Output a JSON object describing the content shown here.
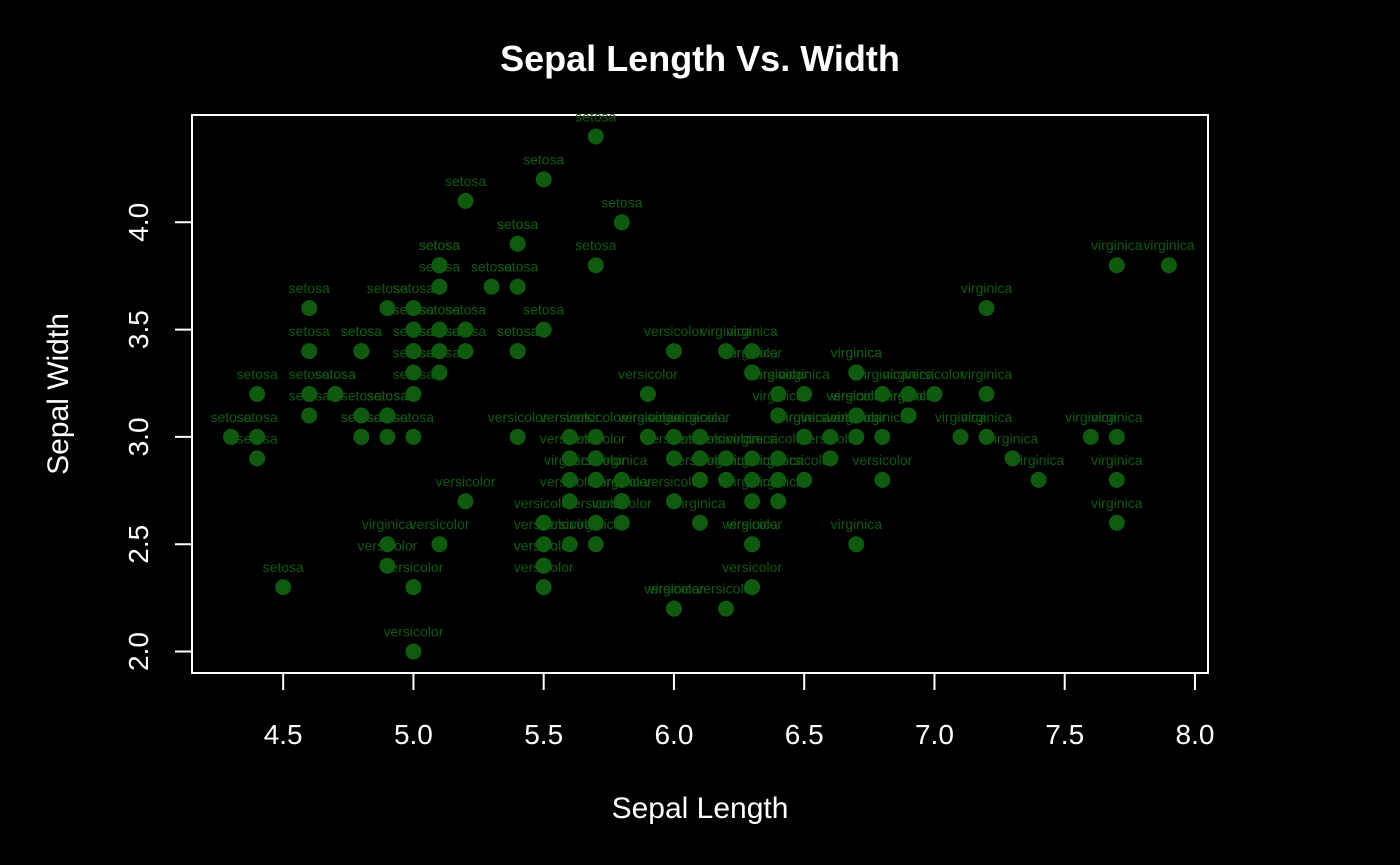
{
  "chart_data": {
    "type": "scatter",
    "title": "Sepal Length Vs. Width",
    "xlabel": "Sepal Length",
    "ylabel": "Sepal Width",
    "xlim": [
      4.15,
      8.05
    ],
    "ylim": [
      1.9,
      4.5
    ],
    "xticks": [
      "4.5",
      "5.0",
      "5.5",
      "6.0",
      "6.5",
      "7.0",
      "7.5",
      "8.0"
    ],
    "yticks": [
      "2.0",
      "2.5",
      "3.0",
      "3.5",
      "4.0"
    ],
    "grid": false,
    "legend": "none",
    "colors": {
      "background": "#000000",
      "foreground": "#ffffff",
      "point": "#0f5a0f"
    },
    "points": [
      [
        5.1,
        3.5,
        "setosa"
      ],
      [
        4.9,
        3.0,
        "setosa"
      ],
      [
        4.7,
        3.2,
        "setosa"
      ],
      [
        4.6,
        3.1,
        "setosa"
      ],
      [
        5.0,
        3.6,
        "setosa"
      ],
      [
        5.4,
        3.9,
        "setosa"
      ],
      [
        4.6,
        3.4,
        "setosa"
      ],
      [
        5.0,
        3.4,
        "setosa"
      ],
      [
        4.4,
        2.9,
        "setosa"
      ],
      [
        4.9,
        3.1,
        "setosa"
      ],
      [
        5.4,
        3.7,
        "setosa"
      ],
      [
        4.8,
        3.4,
        "setosa"
      ],
      [
        4.8,
        3.0,
        "setosa"
      ],
      [
        4.3,
        3.0,
        "setosa"
      ],
      [
        5.8,
        4.0,
        "setosa"
      ],
      [
        5.7,
        4.4,
        "setosa"
      ],
      [
        5.4,
        3.9,
        "setosa"
      ],
      [
        5.1,
        3.5,
        "setosa"
      ],
      [
        5.7,
        3.8,
        "setosa"
      ],
      [
        5.1,
        3.8,
        "setosa"
      ],
      [
        5.4,
        3.4,
        "setosa"
      ],
      [
        5.1,
        3.7,
        "setosa"
      ],
      [
        4.6,
        3.6,
        "setosa"
      ],
      [
        5.1,
        3.3,
        "setosa"
      ],
      [
        4.8,
        3.4,
        "setosa"
      ],
      [
        5.0,
        3.0,
        "setosa"
      ],
      [
        5.0,
        3.4,
        "setosa"
      ],
      [
        5.2,
        3.5,
        "setosa"
      ],
      [
        5.2,
        3.4,
        "setosa"
      ],
      [
        4.7,
        3.2,
        "setosa"
      ],
      [
        4.8,
        3.1,
        "setosa"
      ],
      [
        5.4,
        3.4,
        "setosa"
      ],
      [
        5.2,
        4.1,
        "setosa"
      ],
      [
        5.5,
        4.2,
        "setosa"
      ],
      [
        4.9,
        3.1,
        "setosa"
      ],
      [
        5.0,
        3.2,
        "setosa"
      ],
      [
        5.5,
        3.5,
        "setosa"
      ],
      [
        4.9,
        3.6,
        "setosa"
      ],
      [
        4.4,
        3.0,
        "setosa"
      ],
      [
        5.1,
        3.4,
        "setosa"
      ],
      [
        5.0,
        3.5,
        "setosa"
      ],
      [
        4.5,
        2.3,
        "setosa"
      ],
      [
        4.4,
        3.2,
        "setosa"
      ],
      [
        5.0,
        3.5,
        "setosa"
      ],
      [
        5.1,
        3.8,
        "setosa"
      ],
      [
        4.8,
        3.0,
        "setosa"
      ],
      [
        5.1,
        3.8,
        "setosa"
      ],
      [
        4.6,
        3.2,
        "setosa"
      ],
      [
        5.3,
        3.7,
        "setosa"
      ],
      [
        5.0,
        3.3,
        "setosa"
      ],
      [
        7.0,
        3.2,
        "versicolor"
      ],
      [
        6.4,
        3.2,
        "versicolor"
      ],
      [
        6.9,
        3.1,
        "versicolor"
      ],
      [
        5.5,
        2.3,
        "versicolor"
      ],
      [
        6.5,
        2.8,
        "versicolor"
      ],
      [
        5.7,
        2.8,
        "versicolor"
      ],
      [
        6.3,
        3.3,
        "versicolor"
      ],
      [
        4.9,
        2.4,
        "versicolor"
      ],
      [
        6.6,
        2.9,
        "versicolor"
      ],
      [
        5.2,
        2.7,
        "versicolor"
      ],
      [
        5.0,
        2.0,
        "versicolor"
      ],
      [
        5.9,
        3.0,
        "versicolor"
      ],
      [
        6.0,
        2.2,
        "versicolor"
      ],
      [
        6.1,
        2.9,
        "versicolor"
      ],
      [
        5.6,
        2.9,
        "versicolor"
      ],
      [
        6.7,
        3.1,
        "versicolor"
      ],
      [
        5.6,
        3.0,
        "versicolor"
      ],
      [
        5.8,
        2.7,
        "versicolor"
      ],
      [
        6.2,
        2.2,
        "versicolor"
      ],
      [
        5.6,
        2.5,
        "versicolor"
      ],
      [
        5.9,
        3.2,
        "versicolor"
      ],
      [
        6.1,
        2.8,
        "versicolor"
      ],
      [
        6.3,
        2.5,
        "versicolor"
      ],
      [
        6.1,
        2.8,
        "versicolor"
      ],
      [
        6.4,
        2.9,
        "versicolor"
      ],
      [
        6.6,
        3.0,
        "versicolor"
      ],
      [
        6.8,
        2.8,
        "versicolor"
      ],
      [
        6.7,
        3.0,
        "versicolor"
      ],
      [
        6.0,
        2.9,
        "versicolor"
      ],
      [
        5.7,
        2.6,
        "versicolor"
      ],
      [
        5.5,
        2.4,
        "versicolor"
      ],
      [
        5.5,
        2.4,
        "versicolor"
      ],
      [
        5.8,
        2.7,
        "versicolor"
      ],
      [
        6.0,
        2.7,
        "versicolor"
      ],
      [
        5.4,
        3.0,
        "versicolor"
      ],
      [
        6.0,
        3.4,
        "versicolor"
      ],
      [
        6.7,
        3.1,
        "versicolor"
      ],
      [
        6.3,
        2.3,
        "versicolor"
      ],
      [
        5.6,
        3.0,
        "versicolor"
      ],
      [
        5.5,
        2.5,
        "versicolor"
      ],
      [
        5.5,
        2.6,
        "versicolor"
      ],
      [
        6.1,
        3.0,
        "versicolor"
      ],
      [
        5.8,
        2.6,
        "versicolor"
      ],
      [
        5.0,
        2.3,
        "versicolor"
      ],
      [
        5.6,
        2.7,
        "versicolor"
      ],
      [
        5.7,
        3.0,
        "versicolor"
      ],
      [
        5.7,
        2.9,
        "versicolor"
      ],
      [
        6.2,
        2.9,
        "versicolor"
      ],
      [
        5.1,
        2.5,
        "versicolor"
      ],
      [
        5.7,
        2.8,
        "versicolor"
      ],
      [
        6.3,
        3.3,
        "virginica"
      ],
      [
        5.8,
        2.7,
        "virginica"
      ],
      [
        7.1,
        3.0,
        "virginica"
      ],
      [
        6.3,
        2.9,
        "virginica"
      ],
      [
        6.5,
        3.0,
        "virginica"
      ],
      [
        7.6,
        3.0,
        "virginica"
      ],
      [
        4.9,
        2.5,
        "virginica"
      ],
      [
        7.3,
        2.9,
        "virginica"
      ],
      [
        6.7,
        2.5,
        "virginica"
      ],
      [
        7.2,
        3.6,
        "virginica"
      ],
      [
        6.5,
        3.2,
        "virginica"
      ],
      [
        6.4,
        2.7,
        "virginica"
      ],
      [
        6.8,
        3.0,
        "virginica"
      ],
      [
        5.7,
        2.5,
        "virginica"
      ],
      [
        5.8,
        2.8,
        "virginica"
      ],
      [
        6.4,
        3.2,
        "virginica"
      ],
      [
        6.5,
        3.0,
        "virginica"
      ],
      [
        7.7,
        3.8,
        "virginica"
      ],
      [
        7.7,
        2.6,
        "virginica"
      ],
      [
        6.0,
        2.2,
        "virginica"
      ],
      [
        6.9,
        3.2,
        "virginica"
      ],
      [
        5.6,
        2.8,
        "virginica"
      ],
      [
        7.7,
        2.8,
        "virginica"
      ],
      [
        6.3,
        2.7,
        "virginica"
      ],
      [
        6.7,
        3.3,
        "virginica"
      ],
      [
        7.2,
        3.2,
        "virginica"
      ],
      [
        6.2,
        2.8,
        "virginica"
      ],
      [
        6.1,
        3.0,
        "virginica"
      ],
      [
        6.4,
        2.8,
        "virginica"
      ],
      [
        7.2,
        3.0,
        "virginica"
      ],
      [
        7.4,
        2.8,
        "virginica"
      ],
      [
        7.9,
        3.8,
        "virginica"
      ],
      [
        6.4,
        2.8,
        "virginica"
      ],
      [
        6.3,
        2.8,
        "virginica"
      ],
      [
        6.1,
        2.6,
        "virginica"
      ],
      [
        7.7,
        3.0,
        "virginica"
      ],
      [
        6.3,
        3.4,
        "virginica"
      ],
      [
        6.4,
        3.1,
        "virginica"
      ],
      [
        6.0,
        3.0,
        "virginica"
      ],
      [
        6.9,
        3.1,
        "virginica"
      ],
      [
        6.7,
        3.1,
        "virginica"
      ],
      [
        6.9,
        3.1,
        "virginica"
      ],
      [
        5.8,
        2.7,
        "virginica"
      ],
      [
        6.8,
        3.2,
        "virginica"
      ],
      [
        6.7,
        3.3,
        "virginica"
      ],
      [
        6.7,
        3.0,
        "virginica"
      ],
      [
        6.3,
        2.5,
        "virginica"
      ],
      [
        6.5,
        3.0,
        "virginica"
      ],
      [
        6.2,
        3.4,
        "virginica"
      ],
      [
        5.9,
        3.0,
        "virginica"
      ]
    ]
  }
}
